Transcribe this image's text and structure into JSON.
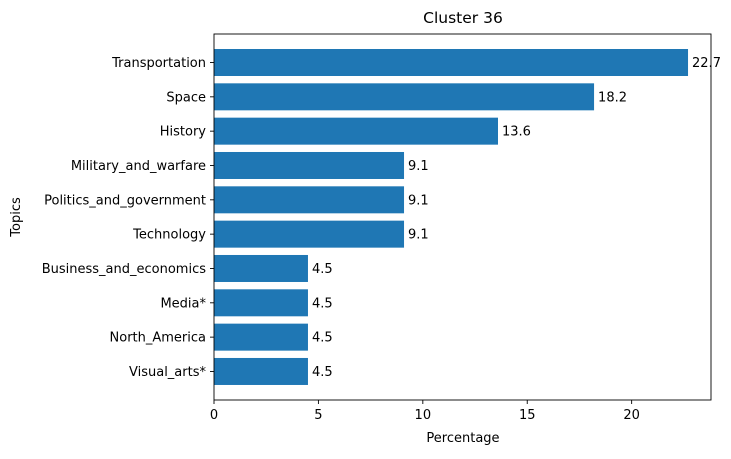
{
  "chart_data": {
    "type": "bar",
    "orientation": "horizontal",
    "title": "Cluster 36",
    "xlabel": "Percentage",
    "ylabel": "Topics",
    "categories": [
      "Transportation",
      "Space",
      "History",
      "Military_and_warfare",
      "Politics_and_government",
      "Technology",
      "Business_and_economics",
      "Media*",
      "North_America",
      "Visual_arts*"
    ],
    "values": [
      22.7,
      18.2,
      13.6,
      9.1,
      9.1,
      9.1,
      4.5,
      4.5,
      4.5,
      4.5
    ],
    "data_labels": [
      "22.7",
      "18.2",
      "13.6",
      "9.1",
      "9.1",
      "9.1",
      "4.5",
      "4.5",
      "4.5",
      "4.5"
    ],
    "xlim": [
      0,
      23.8
    ],
    "xticks": [
      0,
      5,
      10,
      15,
      20
    ],
    "xtick_labels": [
      "0",
      "5",
      "10",
      "15",
      "20"
    ],
    "grid": false,
    "legend": "none",
    "bar_color": "#1f77b4"
  }
}
